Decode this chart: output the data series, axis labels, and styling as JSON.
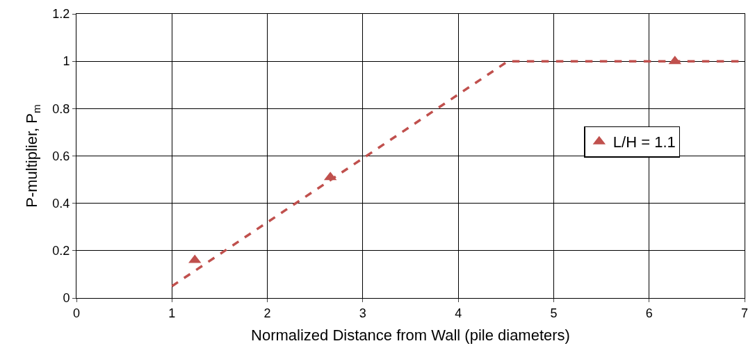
{
  "chart_data": {
    "type": "scatter",
    "xlabel": "Normalized Distance from Wall (pile diameters)",
    "ylabel": "P-multiplier, P$_{m}$",
    "series": [
      {
        "name": "L/H = 1.1",
        "color": "#c0504d",
        "marker": "triangle",
        "x": [
          1.24,
          2.66,
          6.27
        ],
        "values": [
          0.16,
          0.51,
          1.0
        ]
      },
      {
        "type": "line",
        "color": "#c0504d",
        "marker": "none",
        "line_style": "dashed",
        "x": [
          1.0,
          4.52,
          7.0
        ],
        "values": [
          0.05,
          1.0,
          1.0
        ]
      }
    ],
    "xlim": [
      0,
      7
    ],
    "xticks": [
      0,
      1,
      2,
      3,
      4,
      5,
      6,
      7
    ],
    "ylim": [
      0,
      1.2
    ],
    "yticks": [
      0,
      0.2,
      0.4,
      0.6,
      0.8,
      1,
      1.2
    ],
    "grid": true,
    "legend": "right"
  }
}
